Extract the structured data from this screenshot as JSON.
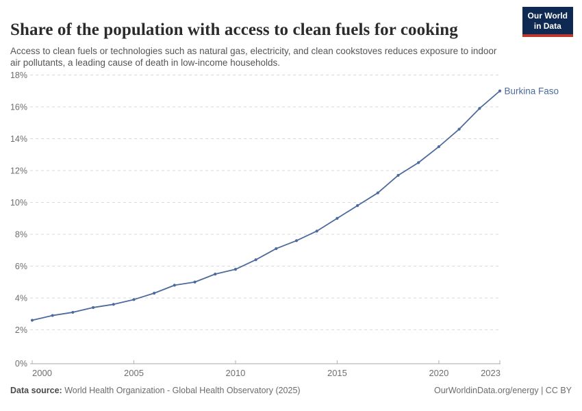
{
  "header": {
    "title": "Share of the population with access to clean fuels for cooking",
    "subtitle": "Access to clean fuels or technologies such as natural gas, electricity, and clean cookstoves reduces exposure to indoor air pollutants, a leading cause of death in low-income households.",
    "logo": {
      "line1": "Our World",
      "line2": "in Data"
    }
  },
  "chart_data": {
    "type": "line",
    "title": "Share of the population with access to clean fuels for cooking",
    "xlabel": "",
    "ylabel": "",
    "xlim": [
      2000,
      2023
    ],
    "ylim": [
      0,
      18
    ],
    "x_ticks": [
      2000,
      2005,
      2010,
      2015,
      2020,
      2023
    ],
    "y_ticks": [
      0,
      2,
      4,
      6,
      8,
      10,
      12,
      14,
      16,
      18
    ],
    "y_tick_suffix": "%",
    "grid": "horizontal-dashed",
    "legend_position": "end-of-line",
    "series": [
      {
        "name": "Burkina Faso",
        "color": "#4c6a9c",
        "x": [
          2000,
          2001,
          2002,
          2003,
          2004,
          2005,
          2006,
          2007,
          2008,
          2009,
          2010,
          2011,
          2012,
          2013,
          2014,
          2015,
          2016,
          2017,
          2018,
          2019,
          2020,
          2021,
          2022,
          2023
        ],
        "values": [
          2.6,
          2.9,
          3.1,
          3.4,
          3.6,
          3.9,
          4.3,
          4.8,
          5.0,
          5.5,
          5.8,
          6.4,
          7.1,
          7.6,
          8.2,
          9.0,
          9.8,
          10.6,
          11.7,
          12.5,
          13.5,
          14.6,
          15.9,
          17.0
        ]
      }
    ]
  },
  "footer": {
    "source_label": "Data source:",
    "source_text": " World Health Organization - Global Health Observatory (2025)",
    "credit": "OurWorldinData.org/energy | CC BY"
  },
  "colors": {
    "line": "#4c6a9c",
    "series_label": "#4c6a9c",
    "grid": "#dadada",
    "axis": "#a8a8a8",
    "tick": "#b0b0b0",
    "axis_text": "#6e6e6e",
    "logo_bg": "#0f2a52",
    "logo_red": "#be372d"
  }
}
